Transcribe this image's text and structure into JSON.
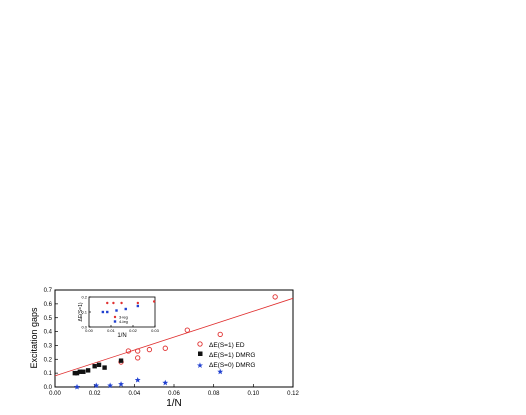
{
  "chart_data": [
    {
      "type": "scatter",
      "xlabel": "1/N",
      "ylabel": "Excitation gaps",
      "xlim": [
        0,
        0.12
      ],
      "ylim": [
        0,
        0.7
      ],
      "x_ticks": [
        "0.00",
        "0.02",
        "0.04",
        "0.06",
        "0.08",
        "0.10",
        "0.12"
      ],
      "y_ticks": [
        "0.0",
        "0.1",
        "0.2",
        "0.3",
        "0.4",
        "0.5",
        "0.6",
        "0.7"
      ],
      "legend_position": "middle-right",
      "series": [
        {
          "name": "ΔE(S=1) ED",
          "marker": "open-circle",
          "color": "#e03030",
          "points": [
            [
              0.111,
              0.65
            ],
            [
              0.0833,
              0.38
            ],
            [
              0.0667,
              0.41
            ],
            [
              0.0556,
              0.28
            ],
            [
              0.0476,
              0.27
            ],
            [
              0.0417,
              0.26
            ],
            [
              0.0417,
              0.21
            ],
            [
              0.037,
              0.26
            ],
            [
              0.0333,
              0.18
            ]
          ]
        },
        {
          "name": "ΔE(S=1) DMRG",
          "marker": "filled-square",
          "color": "#111111",
          "points": [
            [
              0.0333,
              0.19
            ],
            [
              0.025,
              0.14
            ],
            [
              0.0222,
              0.16
            ],
            [
              0.02,
              0.15
            ],
            [
              0.0167,
              0.12
            ],
            [
              0.0143,
              0.11
            ],
            [
              0.0125,
              0.11
            ],
            [
              0.0111,
              0.1
            ],
            [
              0.01,
              0.1
            ]
          ]
        },
        {
          "name": "ΔE(S=0) DMRG",
          "marker": "star",
          "color": "#2040d0",
          "points": [
            [
              0.0833,
              0.11
            ],
            [
              0.0556,
              0.03
            ],
            [
              0.0417,
              0.05
            ],
            [
              0.0333,
              0.02
            ],
            [
              0.0278,
              0.01
            ],
            [
              0.0208,
              0.01
            ],
            [
              0.0111,
              0.0
            ]
          ]
        }
      ],
      "fit_line": {
        "color": "#e03030",
        "x": [
          0,
          0.12
        ],
        "y": [
          0.08,
          0.64
        ]
      }
    },
    {
      "type": "scatter",
      "xlabel": "1/N",
      "ylabel": "ΔE(S=1)",
      "xlim": [
        0,
        0.03
      ],
      "ylim": [
        0,
        0.2
      ],
      "x_ticks": [
        "0.00",
        "0.01",
        "0.02",
        "0.03"
      ],
      "y_ticks": [
        "0.0",
        "0.1",
        "0.2"
      ],
      "legend_position": "bottom-right",
      "series": [
        {
          "name": "3-leg",
          "marker": "filled-circle",
          "color": "#e03030",
          "points": [
            [
              0.0083,
              0.16
            ],
            [
              0.0111,
              0.16
            ],
            [
              0.0148,
              0.16
            ],
            [
              0.0222,
              0.16
            ],
            [
              0.0296,
              0.17
            ]
          ]
        },
        {
          "name": "4-leg",
          "marker": "filled-square",
          "color": "#2040d0",
          "points": [
            [
              0.0063,
              0.1
            ],
            [
              0.0083,
              0.1
            ],
            [
              0.0125,
              0.11
            ],
            [
              0.0167,
              0.12
            ],
            [
              0.0222,
              0.14
            ]
          ]
        }
      ]
    }
  ]
}
